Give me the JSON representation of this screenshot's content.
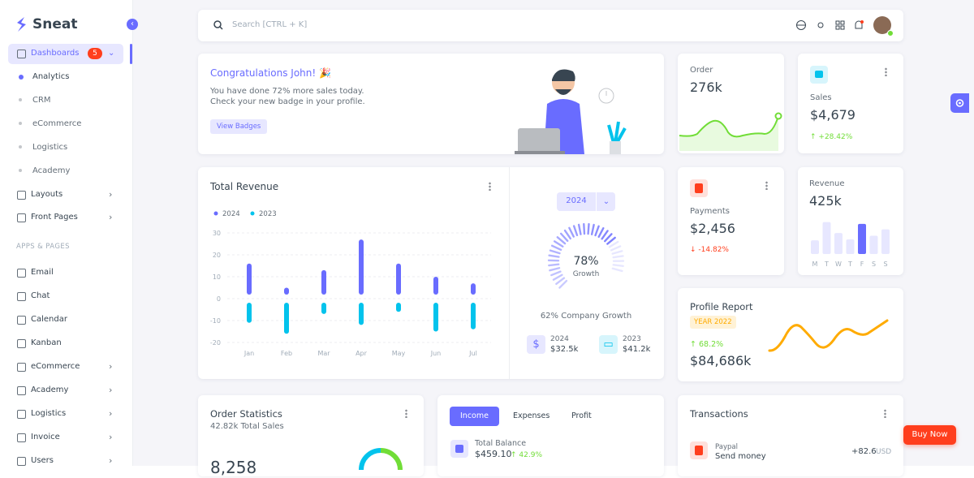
{
  "sidebar": {
    "brand": "Sneat",
    "dashboards": {
      "label": "Dashboards",
      "badge": "5",
      "items": [
        "Analytics",
        "CRM",
        "eCommerce",
        "Logistics",
        "Academy"
      ]
    },
    "groups": [
      "Layouts",
      "Front Pages"
    ],
    "section": "APPS & PAGES",
    "apps": [
      "Email",
      "Chat",
      "Calendar",
      "Kanban",
      "eCommerce",
      "Academy",
      "Logistics",
      "Invoice",
      "Users"
    ]
  },
  "navbar": {
    "search": "Search [CTRL + K]"
  },
  "congrats": {
    "title": "Congratulations John! 🎉",
    "line1": "You have done 72% more sales today.",
    "line2": "Check your new badge in your profile.",
    "button": "View Badges"
  },
  "order": {
    "label": "Order",
    "value": "276k"
  },
  "sales": {
    "label": "Sales",
    "value": "$4,679",
    "change": "+28.42%"
  },
  "total_revenue": {
    "title": "Total Revenue",
    "categories": [
      "Jan",
      "Feb",
      "Mar",
      "Apr",
      "May",
      "Jun",
      "Jul"
    ],
    "series": [
      {
        "name": "2024",
        "color": "#696cff",
        "values": [
          16,
          5,
          13,
          27,
          16,
          10,
          7
        ]
      },
      {
        "name": "2023",
        "color": "#03c3ec",
        "values": [
          -11,
          -16,
          -7,
          -12,
          -6,
          -15,
          -14
        ]
      }
    ],
    "ylim": [
      -20,
      30
    ],
    "yticks": [
      -20,
      -10,
      0,
      10,
      20,
      30
    ],
    "grid": true
  },
  "growth": {
    "year": "2024",
    "value": 78,
    "value_label": "78%",
    "label": "Growth",
    "company": "62% Company Growth",
    "stats": [
      {
        "year": "2024",
        "value": "$32.5k"
      },
      {
        "year": "2023",
        "value": "$41.2k"
      }
    ]
  },
  "payments": {
    "label": "Payments",
    "value": "$2,456",
    "change": "-14.82%"
  },
  "revenue": {
    "label": "Revenue",
    "value": "425k",
    "categories": [
      "M",
      "T",
      "W",
      "T",
      "F",
      "S",
      "S"
    ],
    "values": [
      15,
      35,
      23,
      16,
      33,
      20,
      27
    ],
    "ylim": [
      0,
      40
    ],
    "highlight": 4
  },
  "profile_report": {
    "title": "Profile Report",
    "badge": "YEAR 2022",
    "change": "68.2%",
    "value": "$84,686k"
  },
  "order_statistics": {
    "title": "Order Statistics",
    "subtitle": "42.82k Total Sales",
    "value": "8,258"
  },
  "income": {
    "tabs": [
      "Income",
      "Expenses",
      "Profit"
    ],
    "label": "Total Balance",
    "value": "$459.10",
    "change": "42.9%"
  },
  "transactions": {
    "title": "Transactions",
    "items": [
      {
        "method": "Paypal",
        "desc": "Send money",
        "amount": "+82.6",
        "currency": "USD"
      }
    ]
  },
  "buy_now": "Buy Now"
}
